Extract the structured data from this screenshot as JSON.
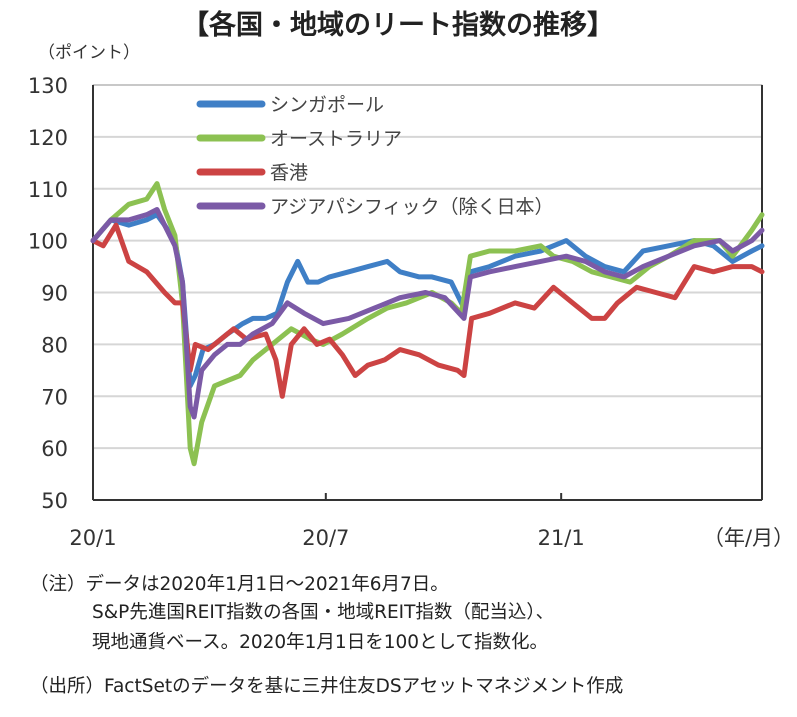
{
  "chart_data": {
    "type": "line",
    "title": "【各国・地域のリート指数の推移】",
    "ylabel": "（ポイント）",
    "xlabel": "（年/月）",
    "ylim": [
      50,
      130
    ],
    "yticks": [
      "130",
      "120",
      "110",
      "100",
      "90",
      "80",
      "70",
      "60",
      "50"
    ],
    "ytick_values": [
      130,
      120,
      110,
      100,
      90,
      80,
      70,
      60,
      50
    ],
    "xrange_days": [
      0,
      523
    ],
    "xticks": [
      {
        "label": "20/1",
        "day": 0
      },
      {
        "label": "20/7",
        "day": 182
      },
      {
        "label": "21/1",
        "day": 366
      }
    ],
    "grid": true,
    "legend_position": "top-left",
    "series": [
      {
        "name": "シンガポール",
        "color": "#3f7fc6",
        "points": [
          [
            0,
            100
          ],
          [
            14,
            104
          ],
          [
            28,
            103
          ],
          [
            42,
            104
          ],
          [
            50,
            105
          ],
          [
            56,
            103
          ],
          [
            64,
            100
          ],
          [
            70,
            92
          ],
          [
            76,
            72
          ],
          [
            80,
            74
          ],
          [
            86,
            79
          ],
          [
            95,
            80
          ],
          [
            105,
            82
          ],
          [
            117,
            84
          ],
          [
            125,
            85
          ],
          [
            135,
            85
          ],
          [
            144,
            86
          ],
          [
            152,
            92
          ],
          [
            160,
            96
          ],
          [
            168,
            92
          ],
          [
            176,
            92
          ],
          [
            185,
            93
          ],
          [
            200,
            94
          ],
          [
            215,
            95
          ],
          [
            230,
            96
          ],
          [
            240,
            94
          ],
          [
            255,
            93
          ],
          [
            265,
            93
          ],
          [
            280,
            92
          ],
          [
            290,
            87
          ],
          [
            295,
            94
          ],
          [
            310,
            95
          ],
          [
            330,
            97
          ],
          [
            350,
            98
          ],
          [
            370,
            100
          ],
          [
            385,
            97
          ],
          [
            400,
            95
          ],
          [
            415,
            94
          ],
          [
            430,
            98
          ],
          [
            450,
            99
          ],
          [
            470,
            100
          ],
          [
            485,
            99
          ],
          [
            500,
            96
          ],
          [
            515,
            98
          ],
          [
            523,
            99
          ]
        ]
      },
      {
        "name": "オーストラリア",
        "color": "#8cc152",
        "points": [
          [
            0,
            100
          ],
          [
            14,
            104
          ],
          [
            28,
            107
          ],
          [
            42,
            108
          ],
          [
            50,
            111
          ],
          [
            56,
            106
          ],
          [
            64,
            101
          ],
          [
            70,
            88
          ],
          [
            76,
            60
          ],
          [
            79,
            57
          ],
          [
            85,
            65
          ],
          [
            95,
            72
          ],
          [
            105,
            73
          ],
          [
            115,
            74
          ],
          [
            125,
            77
          ],
          [
            140,
            80
          ],
          [
            155,
            83
          ],
          [
            170,
            81
          ],
          [
            180,
            80
          ],
          [
            195,
            82
          ],
          [
            215,
            85
          ],
          [
            230,
            87
          ],
          [
            245,
            88
          ],
          [
            265,
            90
          ],
          [
            280,
            88
          ],
          [
            288,
            86
          ],
          [
            295,
            97
          ],
          [
            310,
            98
          ],
          [
            330,
            98
          ],
          [
            350,
            99
          ],
          [
            360,
            97
          ],
          [
            375,
            96
          ],
          [
            390,
            94
          ],
          [
            405,
            93
          ],
          [
            420,
            92
          ],
          [
            435,
            95
          ],
          [
            450,
            97
          ],
          [
            470,
            100
          ],
          [
            490,
            100
          ],
          [
            500,
            97
          ],
          [
            515,
            102
          ],
          [
            523,
            105
          ]
        ]
      },
      {
        "name": "香港",
        "color": "#cc4343",
        "points": [
          [
            0,
            100
          ],
          [
            8,
            99
          ],
          [
            18,
            103
          ],
          [
            28,
            96
          ],
          [
            42,
            94
          ],
          [
            56,
            90
          ],
          [
            64,
            88
          ],
          [
            70,
            88
          ],
          [
            76,
            75
          ],
          [
            80,
            80
          ],
          [
            90,
            79
          ],
          [
            100,
            81
          ],
          [
            110,
            83
          ],
          [
            120,
            81
          ],
          [
            135,
            82
          ],
          [
            143,
            77
          ],
          [
            148,
            70
          ],
          [
            155,
            80
          ],
          [
            165,
            83
          ],
          [
            175,
            80
          ],
          [
            185,
            81
          ],
          [
            195,
            78
          ],
          [
            205,
            74
          ],
          [
            215,
            76
          ],
          [
            228,
            77
          ],
          [
            240,
            79
          ],
          [
            255,
            78
          ],
          [
            270,
            76
          ],
          [
            285,
            75
          ],
          [
            290,
            74
          ],
          [
            296,
            85
          ],
          [
            310,
            86
          ],
          [
            330,
            88
          ],
          [
            345,
            87
          ],
          [
            360,
            91
          ],
          [
            375,
            88
          ],
          [
            390,
            85
          ],
          [
            400,
            85
          ],
          [
            410,
            88
          ],
          [
            425,
            91
          ],
          [
            440,
            90
          ],
          [
            455,
            89
          ],
          [
            470,
            95
          ],
          [
            485,
            94
          ],
          [
            500,
            95
          ],
          [
            515,
            95
          ],
          [
            523,
            94
          ]
        ]
      },
      {
        "name": "アジアパシフィック（除く日本）",
        "color": "#7b5aa6",
        "points": [
          [
            0,
            100
          ],
          [
            14,
            104
          ],
          [
            28,
            104
          ],
          [
            42,
            105
          ],
          [
            50,
            106
          ],
          [
            56,
            103
          ],
          [
            64,
            99
          ],
          [
            70,
            92
          ],
          [
            76,
            68
          ],
          [
            79,
            66
          ],
          [
            85,
            75
          ],
          [
            95,
            78
          ],
          [
            105,
            80
          ],
          [
            115,
            80
          ],
          [
            125,
            82
          ],
          [
            140,
            84
          ],
          [
            152,
            88
          ],
          [
            165,
            86
          ],
          [
            180,
            84
          ],
          [
            200,
            85
          ],
          [
            220,
            87
          ],
          [
            240,
            89
          ],
          [
            260,
            90
          ],
          [
            275,
            89
          ],
          [
            290,
            85
          ],
          [
            295,
            93
          ],
          [
            310,
            94
          ],
          [
            330,
            95
          ],
          [
            350,
            96
          ],
          [
            370,
            97
          ],
          [
            385,
            96
          ],
          [
            400,
            94
          ],
          [
            415,
            93
          ],
          [
            430,
            95
          ],
          [
            450,
            97
          ],
          [
            470,
            99
          ],
          [
            490,
            100
          ],
          [
            500,
            98
          ],
          [
            515,
            100
          ],
          [
            523,
            102
          ]
        ]
      }
    ]
  },
  "notes": {
    "line1": "（注）データは2020年1月1日～2021年6月7日。",
    "line2": "S&P先進国REIT指数の各国・地域REIT指数（配当込）、",
    "line3": "現地通貨ベース。2020年1月1日を100として指数化。",
    "line4": "（出所）FactSetのデータを基に三井住友DSアセットマネジメント作成"
  }
}
